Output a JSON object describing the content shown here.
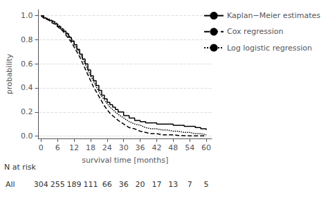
{
  "chart_data": {
    "type": "line",
    "xlabel": "survival time [months]",
    "ylabel": "probability",
    "xlim": [
      -1,
      62
    ],
    "ylim": [
      -0.02,
      1.05
    ],
    "xticks": [
      0,
      6,
      12,
      18,
      24,
      30,
      36,
      42,
      48,
      54,
      60
    ],
    "yticks": [
      {
        "value": 0.0,
        "label": "0.0"
      },
      0.2,
      0.4,
      0.6,
      0.8,
      {
        "value": 1.0,
        "label": "1.0"
      }
    ],
    "grid": "y",
    "legend": "right",
    "series": [
      {
        "name": "Kaplan−Meier estimates",
        "type": "step",
        "color": "#000000",
        "line_style": "solid",
        "x": [
          0,
          1,
          2,
          3,
          4,
          5,
          6,
          7,
          8,
          9,
          10,
          11,
          12,
          13,
          14,
          15,
          16,
          17,
          18,
          19,
          20,
          21,
          22,
          23,
          24,
          25,
          26,
          27,
          28,
          30,
          32,
          34,
          36,
          38,
          40,
          42,
          44,
          46,
          48,
          50,
          52,
          54,
          56,
          58,
          60
        ],
        "values": [
          1.0,
          0.98,
          0.97,
          0.96,
          0.95,
          0.93,
          0.91,
          0.89,
          0.87,
          0.85,
          0.82,
          0.79,
          0.76,
          0.72,
          0.68,
          0.64,
          0.6,
          0.55,
          0.5,
          0.46,
          0.42,
          0.38,
          0.34,
          0.31,
          0.28,
          0.26,
          0.24,
          0.22,
          0.2,
          0.17,
          0.15,
          0.13,
          0.12,
          0.11,
          0.11,
          0.1,
          0.1,
          0.1,
          0.09,
          0.09,
          0.08,
          0.08,
          0.07,
          0.06,
          0.05
        ]
      },
      {
        "name": "Cox regression",
        "type": "line",
        "color": "#000000",
        "line_style": "dashed",
        "x": [
          0,
          1,
          2,
          3,
          4,
          5,
          6,
          7,
          8,
          9,
          10,
          11,
          12,
          13,
          14,
          15,
          16,
          17,
          18,
          19,
          20,
          21,
          22,
          23,
          24,
          25,
          26,
          27,
          28,
          30,
          32,
          34,
          36,
          38,
          40,
          42,
          44,
          46,
          48,
          50,
          52,
          54,
          56,
          58,
          60
        ],
        "values": [
          1.0,
          0.98,
          0.97,
          0.96,
          0.94,
          0.93,
          0.91,
          0.89,
          0.87,
          0.84,
          0.81,
          0.78,
          0.74,
          0.7,
          0.66,
          0.61,
          0.56,
          0.51,
          0.46,
          0.41,
          0.37,
          0.33,
          0.29,
          0.25,
          0.22,
          0.19,
          0.17,
          0.15,
          0.13,
          0.1,
          0.07,
          0.06,
          0.04,
          0.03,
          0.02,
          0.02,
          0.01,
          0.01,
          0.01,
          0.005,
          0.003,
          0.002,
          0.001,
          0.001,
          0.001
        ]
      },
      {
        "name": "Log logistic regression",
        "type": "line",
        "color": "#000000",
        "line_style": "dotted",
        "x": [
          0,
          1,
          2,
          3,
          4,
          5,
          6,
          7,
          8,
          9,
          10,
          11,
          12,
          13,
          14,
          15,
          16,
          17,
          18,
          19,
          20,
          21,
          22,
          23,
          24,
          25,
          26,
          27,
          28,
          30,
          32,
          34,
          36,
          38,
          40,
          42,
          44,
          46,
          48,
          50,
          52,
          54,
          56,
          58,
          60
        ],
        "values": [
          1.0,
          0.99,
          0.98,
          0.97,
          0.96,
          0.95,
          0.93,
          0.91,
          0.89,
          0.87,
          0.84,
          0.81,
          0.77,
          0.73,
          0.69,
          0.65,
          0.6,
          0.55,
          0.5,
          0.46,
          0.41,
          0.37,
          0.33,
          0.3,
          0.27,
          0.24,
          0.22,
          0.2,
          0.18,
          0.15,
          0.12,
          0.1,
          0.09,
          0.07,
          0.06,
          0.06,
          0.05,
          0.05,
          0.04,
          0.04,
          0.03,
          0.03,
          0.02,
          0.02,
          0.01
        ]
      }
    ],
    "risk_table": {
      "title": "N at risk",
      "group": "All",
      "x": [
        0,
        6,
        12,
        18,
        24,
        30,
        36,
        42,
        48,
        54,
        60
      ],
      "values": [
        304,
        255,
        189,
        111,
        66,
        36,
        20,
        17,
        13,
        7,
        5
      ]
    }
  }
}
